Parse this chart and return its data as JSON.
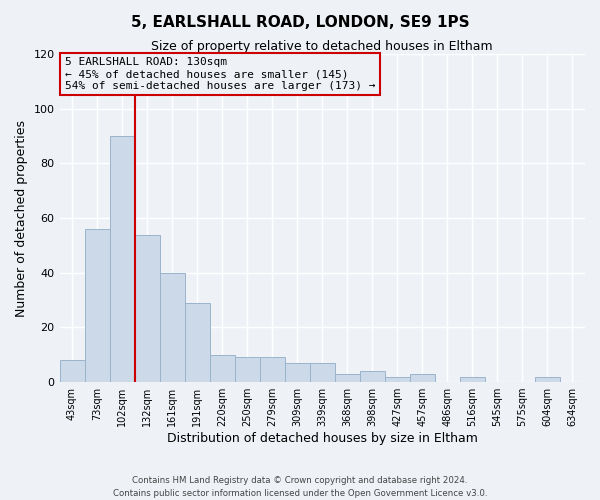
{
  "title": "5, EARLSHALL ROAD, LONDON, SE9 1PS",
  "subtitle": "Size of property relative to detached houses in Eltham",
  "xlabel": "Distribution of detached houses by size in Eltham",
  "ylabel": "Number of detached properties",
  "bin_labels": [
    "43sqm",
    "73sqm",
    "102sqm",
    "132sqm",
    "161sqm",
    "191sqm",
    "220sqm",
    "250sqm",
    "279sqm",
    "309sqm",
    "339sqm",
    "368sqm",
    "398sqm",
    "427sqm",
    "457sqm",
    "486sqm",
    "516sqm",
    "545sqm",
    "575sqm",
    "604sqm",
    "634sqm"
  ],
  "bin_values": [
    8,
    56,
    90,
    54,
    40,
    29,
    10,
    9,
    9,
    7,
    7,
    3,
    4,
    2,
    3,
    0,
    2,
    0,
    0,
    2,
    0
  ],
  "bar_color": "#ccd9e8",
  "bar_edge_color": "#9ab4cc",
  "vline_color": "#cc0000",
  "vline_bin_index": 3,
  "annotation_title": "5 EARLSHALL ROAD: 130sqm",
  "annotation_line1": "← 45% of detached houses are smaller (145)",
  "annotation_line2": "54% of semi-detached houses are larger (173) →",
  "ylim": [
    0,
    120
  ],
  "yticks": [
    0,
    20,
    40,
    60,
    80,
    100,
    120
  ],
  "footer1": "Contains HM Land Registry data © Crown copyright and database right 2024.",
  "footer2": "Contains public sector information licensed under the Open Government Licence v3.0.",
  "bg_color": "#eef2f7",
  "grid_color": "#ffffff",
  "title_fontsize": 11,
  "subtitle_fontsize": 9
}
